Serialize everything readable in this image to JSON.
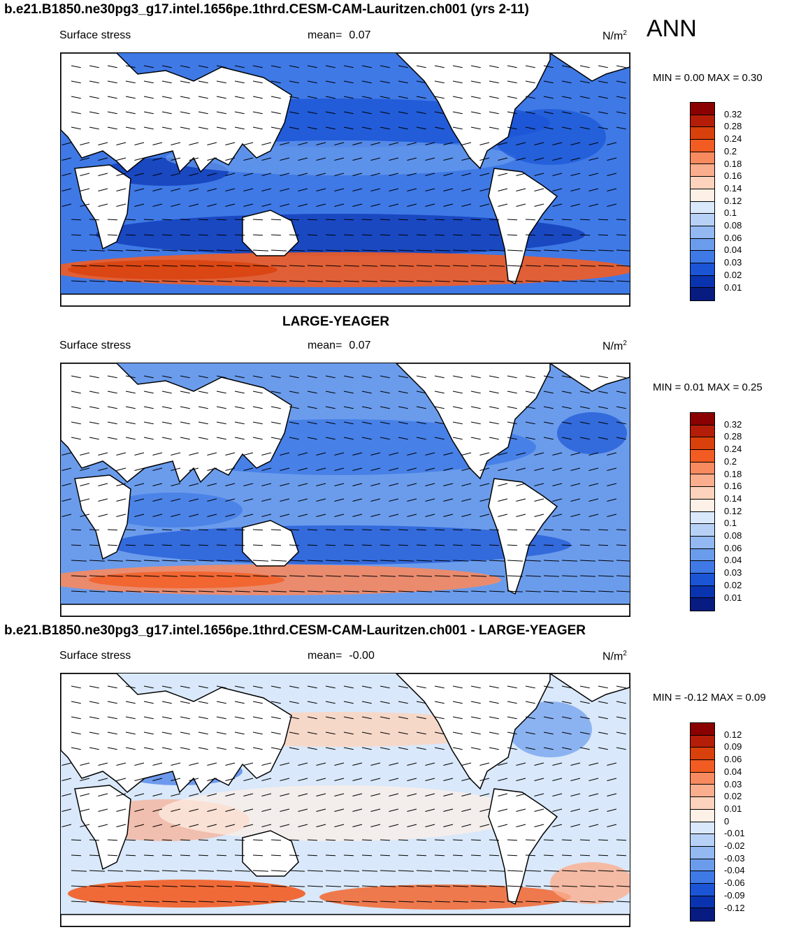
{
  "season": "ANN",
  "colors": {
    "stress_scale": [
      "#8b0000",
      "#b41e08",
      "#d8400c",
      "#f25c22",
      "#f88a60",
      "#fbae8e",
      "#fdd3bd",
      "#fdf0e6",
      "#d9e8fa",
      "#b7d1f6",
      "#93b8f2",
      "#6b9cec",
      "#3f79e6",
      "#1b55d6",
      "#0a33b0",
      "#071b80"
    ],
    "diff_scale": [
      "#8b0000",
      "#b41e08",
      "#d8400c",
      "#f25c22",
      "#f88a60",
      "#fbae8e",
      "#fdd3bd",
      "#fdf0e6",
      "#d9e8fa",
      "#b7d1f6",
      "#93b8f2",
      "#6b9cec",
      "#3f79e6",
      "#1b55d6",
      "#0a33b0",
      "#071b80"
    ]
  },
  "panels": [
    {
      "title": "b.e21.B1850.ne30pg3_g17.intel.1656pe.1thrd.CESM-CAM-Lauritzen.ch001 (yrs 2-11)",
      "variable": "Surface stress",
      "mean_label": "mean=",
      "mean_value": "0.07",
      "units": "N/m",
      "units_sup": "2",
      "minmax": "MIN =   0.00 MAX =   0.30",
      "levels": [
        "0.32",
        "0.28",
        "0.24",
        "0.2",
        "0.18",
        "0.16",
        "0.14",
        "0.12",
        "0.1",
        "0.08",
        "0.06",
        "0.04",
        "0.03",
        "0.02",
        "0.01"
      ]
    },
    {
      "title": "LARGE-YEAGER",
      "variable": "Surface stress",
      "mean_label": "mean=",
      "mean_value": "0.07",
      "units": "N/m",
      "units_sup": "2",
      "minmax": "MIN =   0.01 MAX =   0.25",
      "levels": [
        "0.32",
        "0.28",
        "0.24",
        "0.2",
        "0.18",
        "0.16",
        "0.14",
        "0.12",
        "0.1",
        "0.08",
        "0.06",
        "0.04",
        "0.03",
        "0.02",
        "0.01"
      ]
    },
    {
      "title": "b.e21.B1850.ne30pg3_g17.intel.1656pe.1thrd.CESM-CAM-Lauritzen.ch001 - LARGE-YEAGER",
      "variable": "Surface stress",
      "mean_label": "mean=",
      "mean_value": "-0.00",
      "units": "N/m",
      "units_sup": "2",
      "minmax": "MIN =  -0.12 MAX =   0.09",
      "levels": [
        "0.12",
        "0.09",
        "0.06",
        "0.04",
        "0.03",
        "0.02",
        "0.01",
        "0",
        "-0.01",
        "-0.02",
        "-0.03",
        "-0.04",
        "-0.06",
        "-0.09",
        "-0.12"
      ]
    }
  ]
}
